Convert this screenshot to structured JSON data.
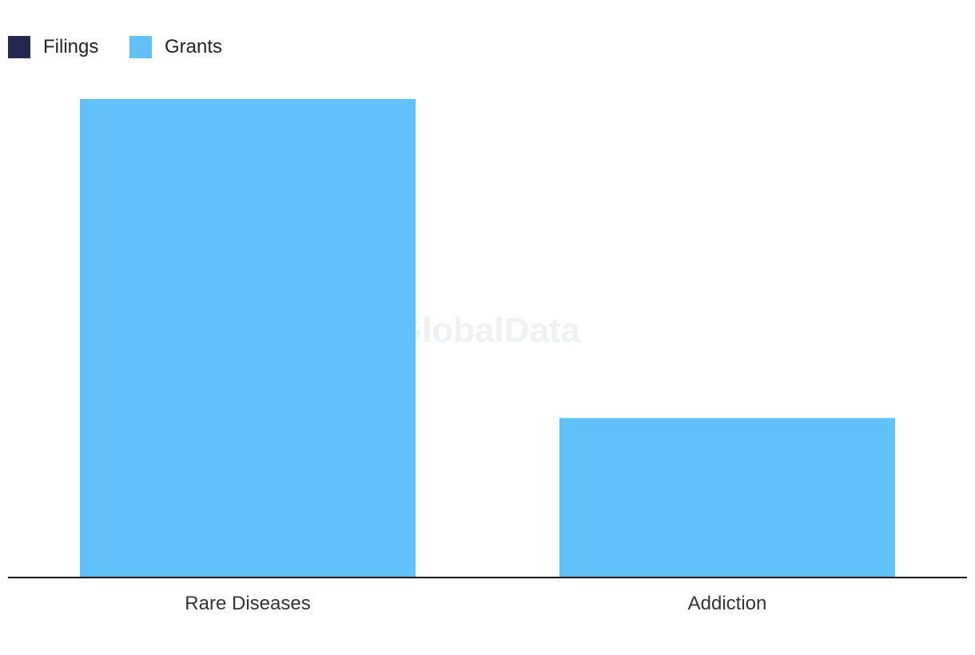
{
  "chart_data": {
    "type": "bar",
    "categories": [
      "Rare Diseases",
      "Addiction"
    ],
    "series": [
      {
        "name": "Filings",
        "color": "#25284f",
        "values": [
          0,
          0
        ]
      },
      {
        "name": "Grants",
        "color": "#63c1f9",
        "values": [
          3,
          1
        ]
      }
    ],
    "ylim": [
      0,
      3
    ],
    "grid": false,
    "legend_position": "top-left",
    "watermark": "GlobalData"
  }
}
